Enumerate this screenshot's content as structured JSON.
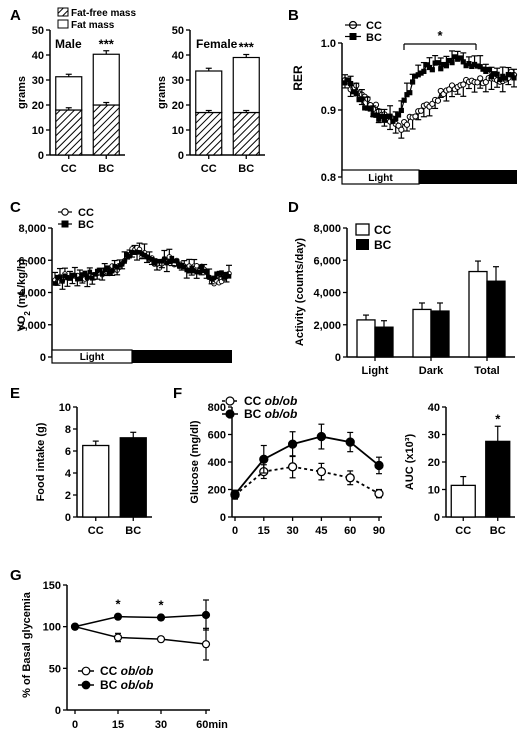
{
  "panels": {
    "A": {
      "letter": "A",
      "legend": [
        "Fat-free mass",
        "Fat mass"
      ],
      "ylabel": "grams",
      "star": "***"
    },
    "B": {
      "letter": "B",
      "ylabel": "RER",
      "legend": [
        "CC",
        "BC"
      ],
      "star": "*",
      "bar": [
        "Light",
        "Dark"
      ]
    },
    "C": {
      "letter": "C",
      "legend": [
        "CC",
        "BC"
      ],
      "bar": [
        "Light",
        "Dark"
      ]
    },
    "D": {
      "letter": "D",
      "ylabel": "Activity (counts/day)",
      "legend": [
        "CC",
        "BC"
      ]
    },
    "E": {
      "letter": "E",
      "ylabel": "Food intake (g)"
    },
    "F": {
      "letter": "F",
      "ylabel": "Glucose (mg/dl)",
      "legend": [
        "CC ob/ob",
        "BC ob/ob"
      ],
      "star": "*"
    },
    "G": {
      "letter": "G",
      "ylabel": "% of Basal glycemia",
      "legend": [
        "CC ob/ob",
        "BC ob/ob"
      ],
      "star": "*"
    }
  },
  "chart_data": [
    {
      "id": "A-male",
      "type": "bar",
      "title": "Male",
      "ylabel": "grams",
      "categories": [
        "CC",
        "BC"
      ],
      "ylim": [
        0,
        50
      ],
      "yticks": [
        0,
        10,
        20,
        30,
        40,
        50
      ],
      "series": [
        {
          "name": "Fat-free mass",
          "values": [
            18,
            20
          ],
          "errors": [
            0.5,
            0.6
          ]
        },
        {
          "name": "Fat mass",
          "values": [
            13.3,
            20.3
          ],
          "errors": [
            0.6,
            1.0
          ]
        }
      ],
      "significance": [
        "",
        "***"
      ]
    },
    {
      "id": "A-female",
      "type": "bar",
      "title": "Female",
      "ylabel": "grams",
      "categories": [
        "CC",
        "BC"
      ],
      "ylim": [
        0,
        50
      ],
      "yticks": [
        0,
        10,
        20,
        30,
        40,
        50
      ],
      "series": [
        {
          "name": "Fat-free mass",
          "values": [
            17,
            17
          ],
          "errors": [
            0.4,
            0.4
          ]
        },
        {
          "name": "Fat mass",
          "values": [
            16.6,
            22
          ],
          "errors": [
            0.7,
            0.8
          ]
        }
      ],
      "significance": [
        "",
        "***"
      ]
    },
    {
      "id": "B",
      "type": "line",
      "ylabel": "RER",
      "ylim": [
        0.8,
        1.0
      ],
      "yticks": [
        "0.8",
        "0.9",
        "1.0"
      ],
      "phases": [
        "Light",
        "Dark"
      ],
      "series": [
        {
          "name": "CC",
          "profile": [
            [
              0,
              0.94
            ],
            [
              0.08,
              0.93
            ],
            [
              0.17,
              0.905
            ],
            [
              0.28,
              0.885
            ],
            [
              0.34,
              0.875
            ],
            [
              0.42,
              0.895
            ],
            [
              0.5,
              0.91
            ],
            [
              0.58,
              0.925
            ],
            [
              0.66,
              0.935
            ],
            [
              0.75,
              0.945
            ],
            [
              0.85,
              0.945
            ],
            [
              0.92,
              0.938
            ],
            [
              1,
              0.955
            ]
          ]
        },
        {
          "name": "BC",
          "profile": [
            [
              0,
              0.945
            ],
            [
              0.06,
              0.93
            ],
            [
              0.12,
              0.905
            ],
            [
              0.2,
              0.89
            ],
            [
              0.3,
              0.885
            ],
            [
              0.36,
              0.92
            ],
            [
              0.42,
              0.95
            ],
            [
              0.5,
              0.965
            ],
            [
              0.58,
              0.968
            ],
            [
              0.66,
              0.975
            ],
            [
              0.74,
              0.97
            ],
            [
              0.8,
              0.965
            ],
            [
              0.86,
              0.955
            ],
            [
              0.93,
              0.95
            ],
            [
              1,
              0.952
            ]
          ]
        }
      ],
      "significance": "*"
    },
    {
      "id": "C",
      "type": "line",
      "ylabel": "VO2 (mL/kg/h)",
      "ylim": [
        0,
        8000
      ],
      "yticks": [
        "0",
        "2,000",
        "4,000",
        "6,000",
        "8,000"
      ],
      "phases": [
        "Light",
        "Dark"
      ],
      "series": [
        {
          "name": "CC",
          "profile": [
            [
              0,
              4850
            ],
            [
              0.1,
              5000
            ],
            [
              0.2,
              5050
            ],
            [
              0.3,
              5300
            ],
            [
              0.38,
              5700
            ],
            [
              0.46,
              6700
            ],
            [
              0.54,
              6200
            ],
            [
              0.6,
              5700
            ],
            [
              0.66,
              6050
            ],
            [
              0.72,
              5800
            ],
            [
              0.78,
              5450
            ],
            [
              0.84,
              5550
            ],
            [
              0.88,
              4950
            ],
            [
              0.93,
              4600
            ],
            [
              1,
              4950
            ]
          ]
        },
        {
          "name": "BC",
          "profile": [
            [
              0,
              4750
            ],
            [
              0.1,
              4900
            ],
            [
              0.2,
              5050
            ],
            [
              0.3,
              5350
            ],
            [
              0.38,
              5800
            ],
            [
              0.46,
              6650
            ],
            [
              0.54,
              6100
            ],
            [
              0.6,
              5900
            ],
            [
              0.66,
              6000
            ],
            [
              0.72,
              5700
            ],
            [
              0.78,
              5400
            ],
            [
              0.84,
              5500
            ],
            [
              0.88,
              5100
            ],
            [
              0.93,
              5000
            ],
            [
              1,
              5050
            ]
          ]
        }
      ]
    },
    {
      "id": "D",
      "type": "bar",
      "ylabel": "Activity (counts/day)",
      "ylim": [
        0,
        8000
      ],
      "yticks": [
        "0",
        "2,000",
        "4,000",
        "6,000",
        "8,000"
      ],
      "categories": [
        "Light",
        "Dark",
        "Total"
      ],
      "series": [
        {
          "name": "CC",
          "values": [
            2300,
            2950,
            5300
          ],
          "errors": [
            300,
            400,
            650
          ]
        },
        {
          "name": "BC",
          "values": [
            1850,
            2850,
            4700
          ],
          "errors": [
            400,
            500,
            900
          ]
        }
      ]
    },
    {
      "id": "E",
      "type": "bar",
      "ylabel": "Food intake (g)",
      "ylim": [
        0,
        10
      ],
      "yticks": [
        0,
        2,
        4,
        6,
        8,
        10
      ],
      "categories": [
        "CC",
        "BC"
      ],
      "values": [
        6.5,
        7.2
      ],
      "errors": [
        0.4,
        0.5
      ]
    },
    {
      "id": "F",
      "type": "line",
      "ylabel": "Glucose (mg/dl)",
      "ylim": [
        0,
        800
      ],
      "yticks": [
        0,
        200,
        400,
        600,
        800
      ],
      "x": [
        0,
        15,
        30,
        45,
        60,
        90
      ],
      "series": [
        {
          "name": "CC ob/ob",
          "values": [
            160,
            330,
            365,
            330,
            285,
            170
          ],
          "errors": [
            30,
            50,
            80,
            60,
            50,
            30
          ]
        },
        {
          "name": "BC ob/ob",
          "values": [
            165,
            420,
            530,
            585,
            545,
            375
          ],
          "errors": [
            30,
            100,
            90,
            90,
            70,
            60
          ]
        }
      ]
    },
    {
      "id": "F-AUC",
      "type": "bar",
      "ylabel": "AUC (x10³)",
      "ylim": [
        0,
        40
      ],
      "yticks": [
        0,
        10,
        20,
        30,
        40
      ],
      "categories": [
        "CC",
        "BC"
      ],
      "values": [
        11.5,
        27.5
      ],
      "errors": [
        3.2,
        5.5
      ],
      "significance": [
        "",
        "*"
      ]
    },
    {
      "id": "G",
      "type": "line",
      "ylabel": "% of Basal glycemia",
      "ylim": [
        0,
        150
      ],
      "yticks": [
        0,
        50,
        100,
        150
      ],
      "x": [
        0,
        15,
        30,
        60
      ],
      "xticklabels": [
        "0",
        "15",
        "30",
        "60min"
      ],
      "series": [
        {
          "name": "CC ob/ob",
          "values": [
            100,
            87,
            85,
            79
          ],
          "errors": [
            0,
            5,
            2,
            19
          ]
        },
        {
          "name": "BC ob/ob",
          "values": [
            100,
            112,
            111,
            114
          ],
          "errors": [
            0,
            2,
            3,
            18
          ]
        }
      ],
      "significance": [
        "",
        "*",
        "*",
        ""
      ]
    }
  ]
}
